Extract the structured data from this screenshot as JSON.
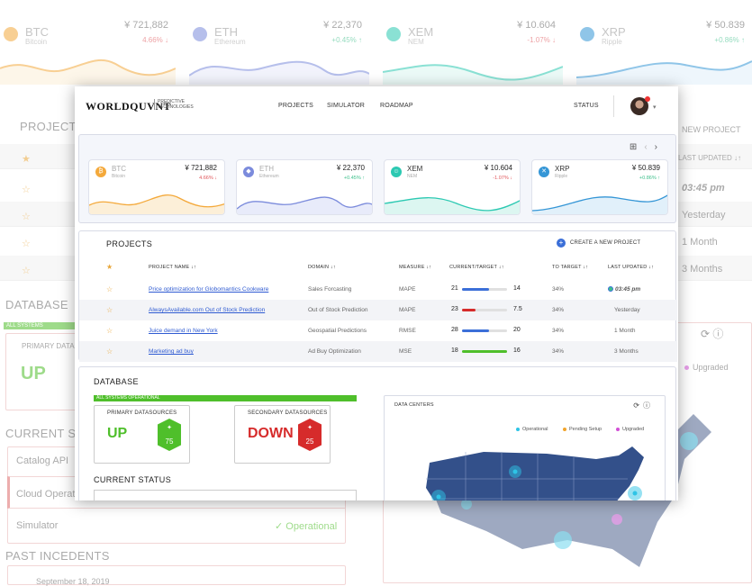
{
  "background": {
    "tickers": [
      {
        "symbol": "BTC",
        "name": "Bitcoin",
        "price": "¥ 721,882",
        "change": "4.66% ↓",
        "color": "#f4a93b",
        "trend": "down"
      },
      {
        "symbol": "ETH",
        "name": "Ethereum",
        "price": "¥ 22,370",
        "change": "+0.45% ↑",
        "color": "#7b8bdc",
        "trend": "up"
      },
      {
        "symbol": "XEM",
        "name": "NEM",
        "price": "¥ 10.604",
        "change": "-1.07% ↓",
        "color": "#2cc9b2",
        "trend": "down"
      },
      {
        "symbol": "XRP",
        "name": "Ripple",
        "price": "¥ 50.839",
        "change": "+0.86% ↑",
        "color": "#3596d6",
        "trend": "up"
      }
    ],
    "projects_title": "PROJECTS",
    "new_project": "NEW PROJECT",
    "last_updated": "LAST UPDATED ↓↑",
    "updated_values": [
      "03:45 pm",
      "Yesterday",
      "1 Month",
      "3 Months"
    ],
    "database_title": "DATABASE",
    "all_systems": "ALL SYSTEMS OPERATIONAL",
    "primary_label": "PRIMARY DATASOURCES",
    "up": "UP",
    "current_status_title": "CURRENT STATUS",
    "status_items": [
      "Catalog API",
      "Cloud Operations",
      "Simulator"
    ],
    "operational": "✓ Operational",
    "upgraded": "Upgraded",
    "past_incidents": "PAST INCEDENTS",
    "incident_date": "September 18, 2019"
  },
  "nav": {
    "logo": "WORLDQUVNT",
    "logo_sub": "PREDICTIVE TECHNOLOGIES",
    "links": [
      "PROJECTS",
      "SIMULATOR",
      "ROADMAP"
    ],
    "status": "STATUS"
  },
  "tickers": [
    {
      "symbol": "BTC",
      "name": "Bitcoin",
      "price": "¥ 721,882",
      "change": "4.66% ↓",
      "color": "#f4a93b",
      "change_color": "#e0555a",
      "trend": "down"
    },
    {
      "symbol": "ETH",
      "name": "Ethereum",
      "price": "¥ 22,370",
      "change": "+0.45% ↑",
      "color": "#7b8bdc",
      "change_color": "#3cbf8a",
      "trend": "up"
    },
    {
      "symbol": "XEM",
      "name": "NEM",
      "price": "¥ 10.604",
      "change": "-1.07% ↓",
      "color": "#2cc9b2",
      "change_color": "#e0555a",
      "trend": "down"
    },
    {
      "symbol": "XRP",
      "name": "Ripple",
      "price": "¥ 50.839",
      "change": "+0.86% ↑",
      "color": "#3596d6",
      "change_color": "#3cbf8a",
      "trend": "up"
    }
  ],
  "projects": {
    "title": "PROJECTS",
    "new_button": "CREATE A NEW PROJECT",
    "headers": {
      "name": "PROJECT NAME  ↓↑",
      "domain": "DOMAIN  ↓↑",
      "measure": "MEASURE  ↓↑",
      "current": "CURRENT/TARGET  ↓↑",
      "to_target": "TO TARGET  ↓↑",
      "updated": "LAST UPDATED  ↓↑"
    },
    "rows": [
      {
        "name": "Price optimization for Globomantics Cookware",
        "domain": "Sales Forcasting",
        "measure": "MAPE",
        "current": "21",
        "target": "14",
        "progress": 0.6,
        "bar_color": "#3b6fd8",
        "to_target": "34%",
        "updated": "03:45 pm"
      },
      {
        "name": "AlwaysAvailable.com Out of Stock Prediction",
        "domain": "Out of Stock Prediction",
        "measure": "MAPE",
        "current": "23",
        "target": "7.5",
        "progress": 0.3,
        "bar_color": "#d62b2b",
        "to_target": "34%",
        "updated": "Yesterday"
      },
      {
        "name": "Juice demand in New York",
        "domain": "Geospatial Predictions",
        "measure": "RMSE",
        "current": "28",
        "target": "20",
        "progress": 0.6,
        "bar_color": "#3b6fd8",
        "to_target": "34%",
        "updated": "1 Month"
      },
      {
        "name": "Marketing ad buy",
        "domain": "Ad Buy Optimization",
        "measure": "MSE",
        "current": "18",
        "target": "16",
        "progress": 1.0,
        "bar_color": "#4fbf2b",
        "to_target": "34%",
        "updated": "3 Months"
      }
    ]
  },
  "database": {
    "title": "DATABASE",
    "all_systems": "ALL SYSTEMS OPERATIONAL",
    "primary": {
      "label": "PRIMARY DATASOURCES",
      "status": "UP",
      "count": "75",
      "color": "#4fbf2b"
    },
    "secondary": {
      "label": "SECONDARY DATASOURCES",
      "status": "DOWN",
      "count": "25",
      "color": "#d62b2b"
    },
    "current_status": "CURRENT STATUS",
    "data_centers": {
      "label": "DATA CENTERS",
      "legend": [
        "Operational",
        "Pending Setup",
        "Upgraded"
      ],
      "legend_colors": [
        "#2ec4e6",
        "#f1a42b",
        "#d24fd6"
      ]
    }
  }
}
